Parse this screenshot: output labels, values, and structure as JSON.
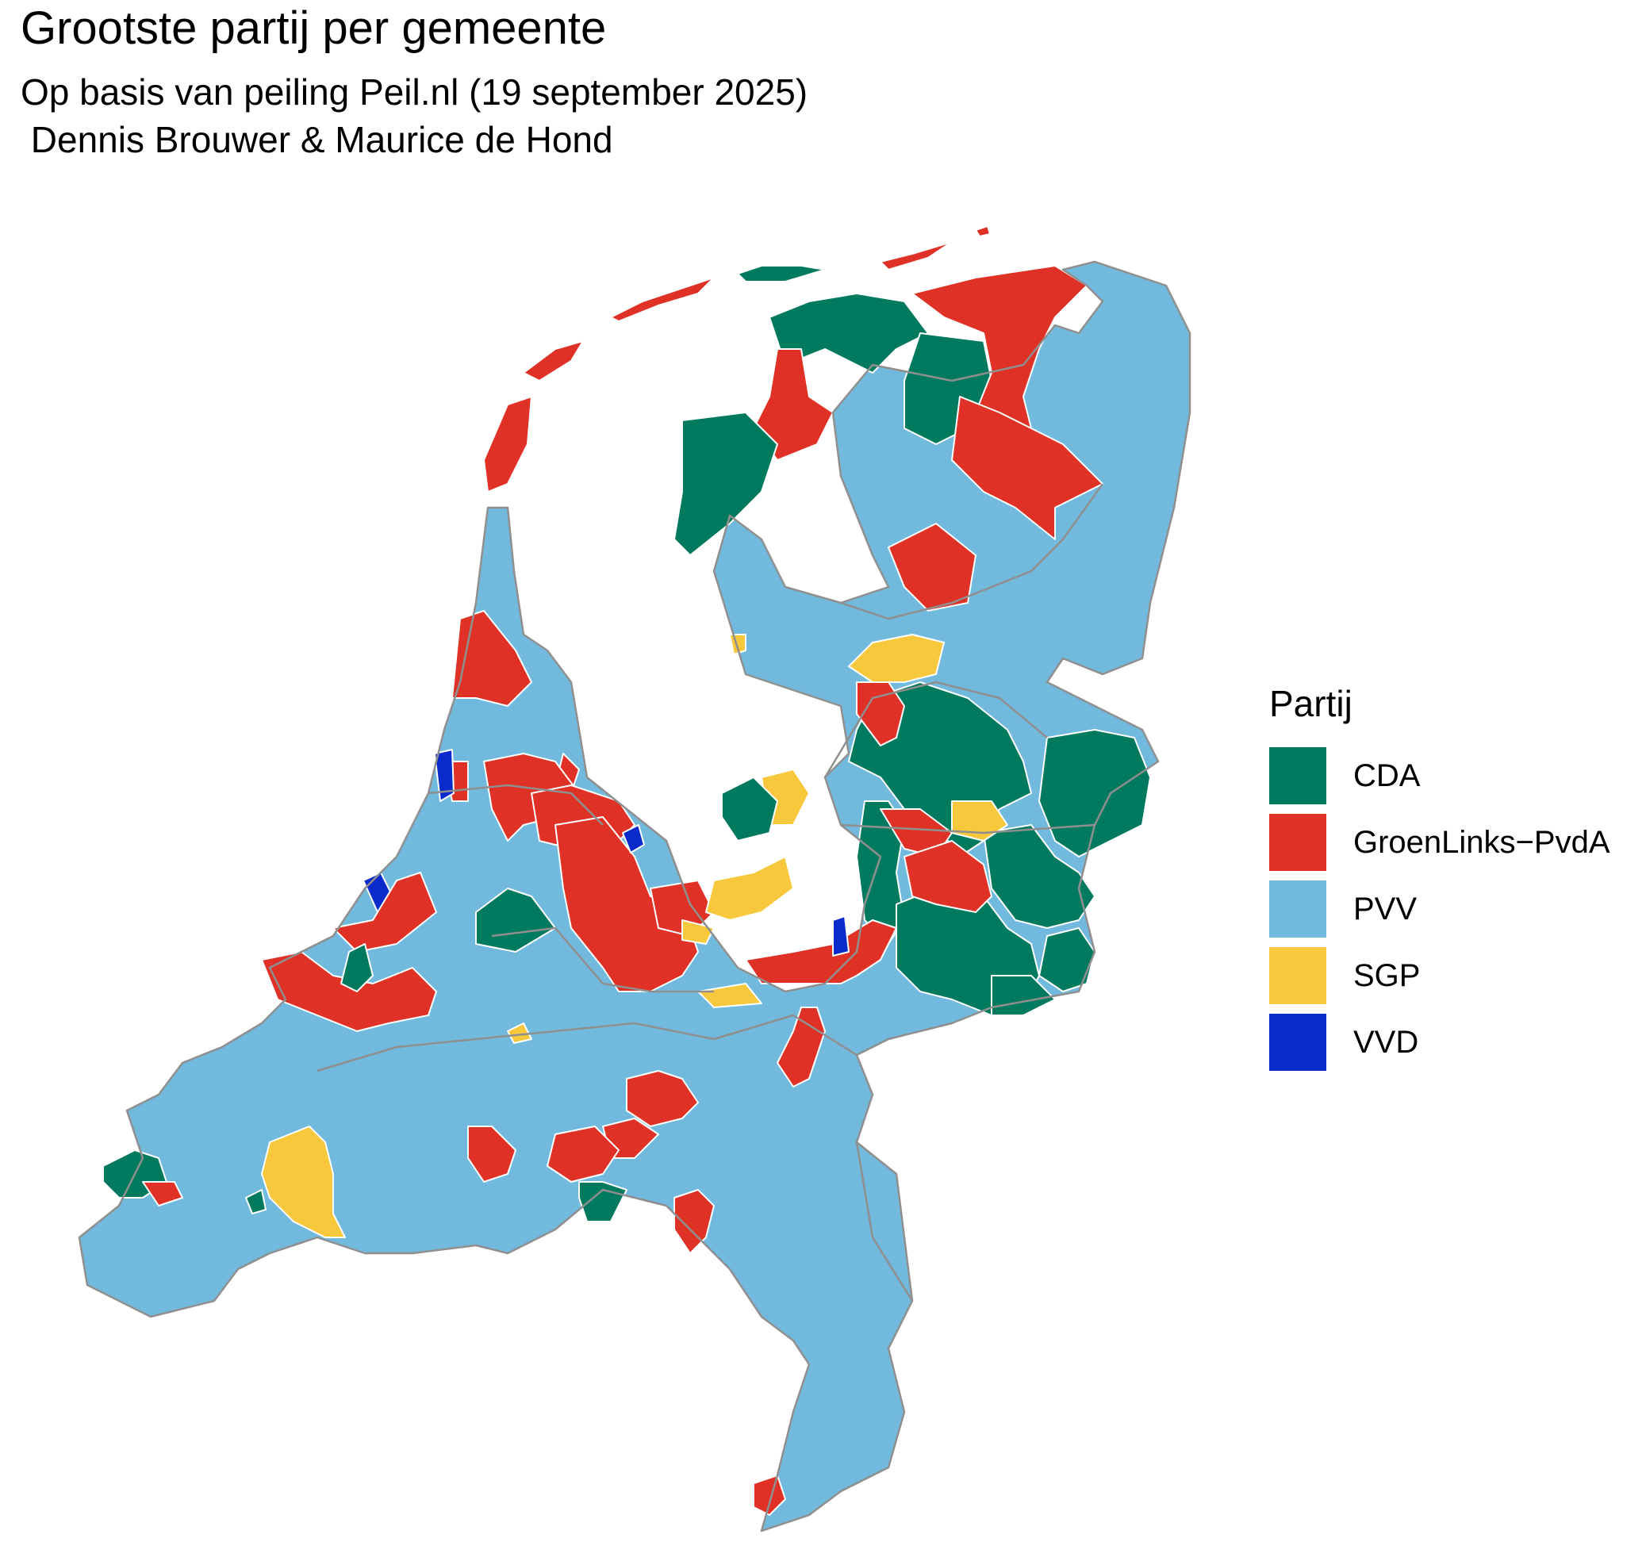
{
  "title": "Grootste partij per gemeente",
  "subtitle": "Op basis van peiling Peil.nl (19 september 2025)\n Dennis Brouwer & Maurice de Hond",
  "legend": {
    "title": "Partij",
    "items": [
      {
        "label": "CDA",
        "color": "#007A5E"
      },
      {
        "label": "GroenLinks−PvdA",
        "color": "#E03127"
      },
      {
        "label": "PVV",
        "color": "#72BADD"
      },
      {
        "label": "SGP",
        "color": "#F8C83C"
      },
      {
        "label": "VVD",
        "color": "#0A2ACB"
      }
    ]
  },
  "colors": {
    "border_municipality": "#ffffff",
    "border_province": "#8f8f8f"
  }
}
